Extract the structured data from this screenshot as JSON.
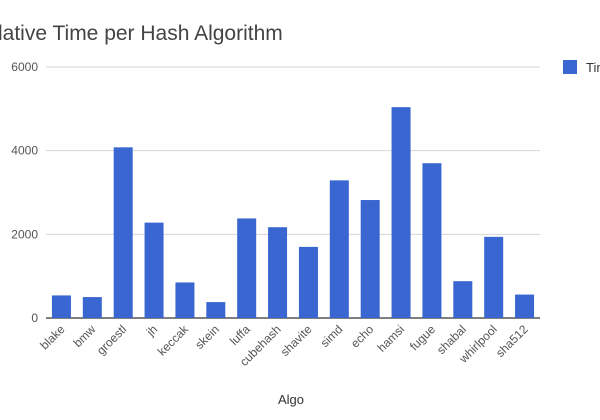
{
  "chart_data": {
    "type": "bar",
    "title": "Relative Time per Hash Algorithm",
    "title_visible": "lative Time per Hash Algorithm",
    "xlabel": "Algo",
    "ylabel": "",
    "legend": {
      "position": "right",
      "label": "Time",
      "label_visible": "Tim"
    },
    "categories": [
      "blake",
      "bmw",
      "groestl",
      "jh",
      "keccak",
      "skein",
      "luffa",
      "cubehash",
      "shavite",
      "simd",
      "echo",
      "hamsi",
      "fugue",
      "shabal",
      "whirlpool",
      "sha512"
    ],
    "series": [
      {
        "name": "Time",
        "color": "#3a66d1",
        "values": [
          540,
          500,
          4080,
          2280,
          850,
          380,
          2380,
          2170,
          1700,
          3290,
          2820,
          5040,
          3700,
          880,
          1940,
          560
        ]
      }
    ],
    "ylim": [
      0,
      6000
    ],
    "yticks": [
      0,
      2000,
      4000,
      6000
    ],
    "grid": true
  }
}
